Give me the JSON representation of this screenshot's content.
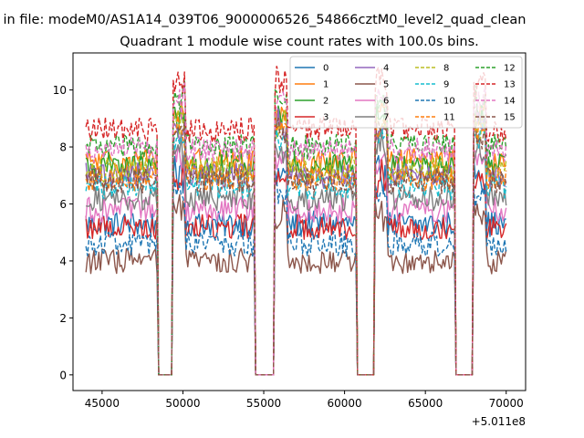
{
  "chart_data": {
    "type": "line",
    "suptitle": "in file: modeM0/AS1A14_039T06_9000006526_54866cztM0_level2_quad_clean",
    "title": "Quadrant 1 module wise count rates with 100.0s bins.",
    "xlabel": "",
    "ylabel": "",
    "x_offset_label": "+5.011e8",
    "xlim": [
      43200,
      71200
    ],
    "ylim": [
      -0.55,
      11.3
    ],
    "x_ticks": [
      45000,
      50000,
      55000,
      60000,
      65000,
      70000
    ],
    "x_tick_labels": [
      "45000",
      "50000",
      "55000",
      "60000",
      "65000",
      "70000"
    ],
    "y_ticks": [
      0,
      2,
      4,
      6,
      8,
      10
    ],
    "y_tick_labels": [
      "0",
      "2",
      "4",
      "6",
      "8",
      "10"
    ],
    "x_start": 44000,
    "x_end": 70000,
    "bin_width": 100,
    "gaps": [
      [
        48500,
        49300
      ],
      [
        54500,
        55600
      ],
      [
        60800,
        61800
      ],
      [
        66900,
        67900
      ]
    ],
    "legend_position": "top-right",
    "legend_columns": 4,
    "series": [
      {
        "name": "0",
        "color": "#1f77b4",
        "style": "solid",
        "level": 5.3
      },
      {
        "name": "1",
        "color": "#ff7f0e",
        "style": "solid",
        "level": 7.5
      },
      {
        "name": "2",
        "color": "#2ca02c",
        "style": "solid",
        "level": 7.3
      },
      {
        "name": "3",
        "color": "#d62728",
        "style": "solid",
        "level": 5.2
      },
      {
        "name": "4",
        "color": "#9467bd",
        "style": "solid",
        "level": 7.0
      },
      {
        "name": "5",
        "color": "#8c564b",
        "style": "solid",
        "level": 4.0
      },
      {
        "name": "6",
        "color": "#e377c2",
        "style": "solid",
        "level": 5.8
      },
      {
        "name": "7",
        "color": "#7f7f7f",
        "style": "solid",
        "level": 6.2
      },
      {
        "name": "8",
        "color": "#bcbd22",
        "style": "dashed",
        "level": 7.2
      },
      {
        "name": "9",
        "color": "#17becf",
        "style": "dashed",
        "level": 6.6
      },
      {
        "name": "10",
        "color": "#1f77b4",
        "style": "dashed",
        "level": 4.6
      },
      {
        "name": "11",
        "color": "#ff7f0e",
        "style": "dashed",
        "level": 6.9
      },
      {
        "name": "12",
        "color": "#2ca02c",
        "style": "dashed",
        "level": 8.0
      },
      {
        "name": "13",
        "color": "#d62728",
        "style": "dashed",
        "level": 8.6
      },
      {
        "name": "14",
        "color": "#e377c2",
        "style": "dashed",
        "level": 7.9
      },
      {
        "name": "15",
        "color": "#8c564b",
        "style": "dashed",
        "level": 6.8
      }
    ]
  }
}
